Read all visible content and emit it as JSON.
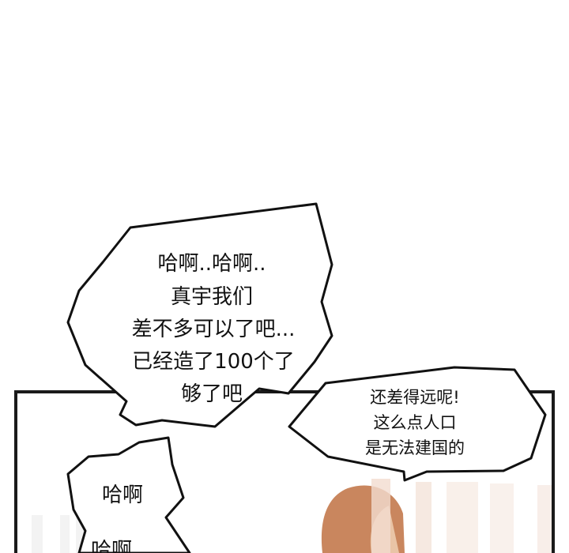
{
  "bubbles": {
    "main": {
      "lines": [
        "哈啊..哈啊..",
        "真宇我们",
        "差不多可以了吧...",
        "已经造了100个了",
        "够了吧"
      ]
    },
    "reply": {
      "lines": [
        "还差得远呢!",
        "这么点人口",
        "是无法建国的"
      ]
    },
    "gasp": {
      "line1": "哈啊",
      "line2": "哈啊"
    }
  },
  "colors": {
    "ink": "#111111",
    "panel_border": "#1a1a1a",
    "hair": "#c9865e",
    "skin": "#e9c4a6"
  }
}
